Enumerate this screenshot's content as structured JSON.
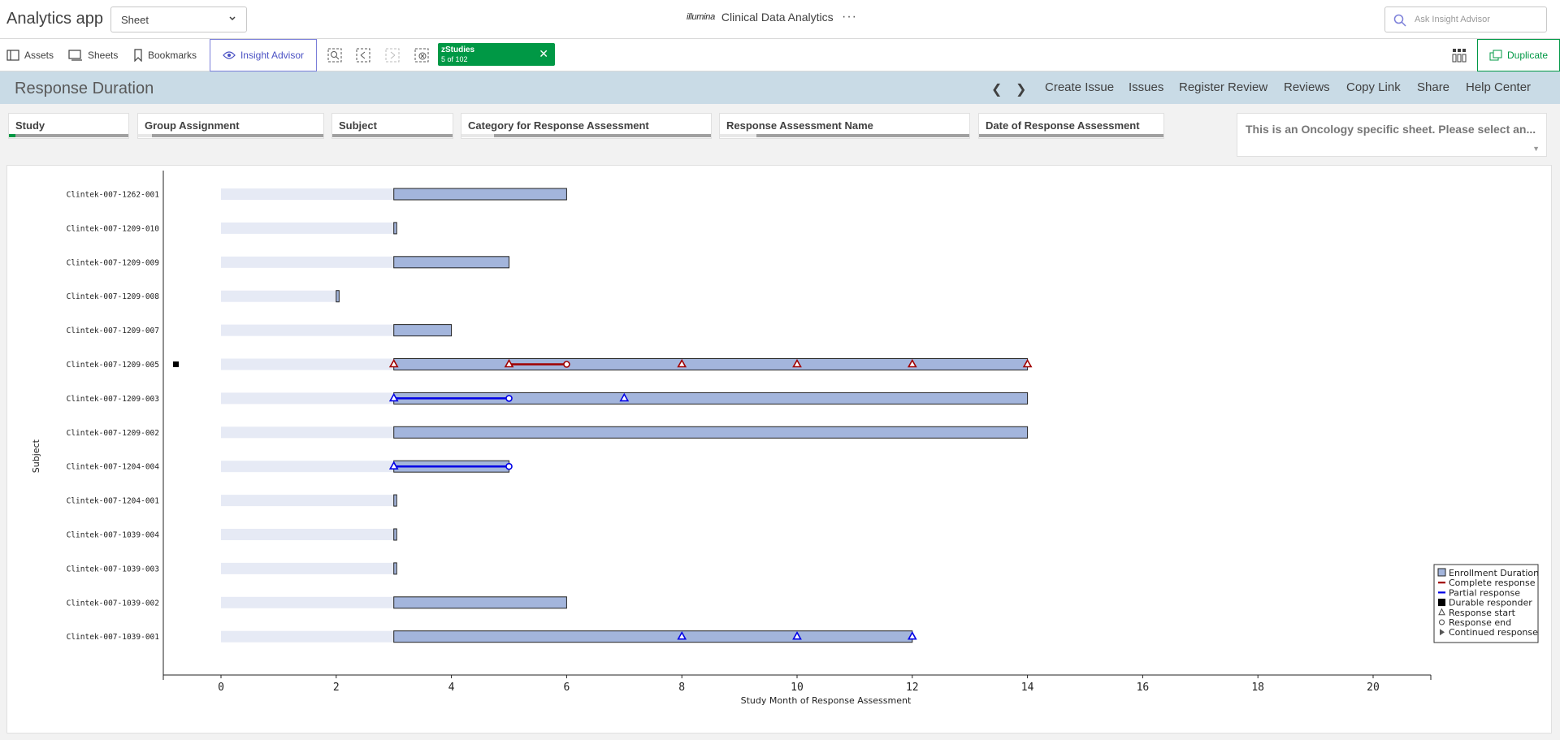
{
  "app": {
    "title": "Analytics app"
  },
  "sheet_select": {
    "value": "Sheet"
  },
  "brand": {
    "logo": "illumina",
    "title": "Clinical Data Analytics",
    "more": "···"
  },
  "ask": {
    "placeholder": "Ask Insight Advisor"
  },
  "toolbar": {
    "assets": "Assets",
    "sheets": "Sheets",
    "bookmarks": "Bookmarks",
    "insight": "Insight Advisor",
    "chip_title": "zStudies",
    "chip_count": "5 of 102",
    "duplicate": "Duplicate"
  },
  "sheet": {
    "title": "Response Duration",
    "links": [
      "Create Issue",
      "Issues",
      "Register Review",
      "Reviews",
      "Copy Link",
      "Share",
      "Help Center"
    ]
  },
  "filters": [
    {
      "label": "Study"
    },
    {
      "label": "Group Assignment"
    },
    {
      "label": "Subject"
    },
    {
      "label": "Category for Response Assessment"
    },
    {
      "label": "Response Assessment Name"
    },
    {
      "label": "Date of Response Assessment"
    }
  ],
  "note": {
    "text": "This is an Oncology specific sheet. Please select an..."
  },
  "colors": {
    "enrollment": "#a3b5dc",
    "prestudy": "#e6eaf5",
    "complete": "#a00000",
    "partial": "#0000e6",
    "green": "#009845"
  },
  "chart_data": {
    "type": "bar",
    "xlabel": "Study Month of Response Assessment",
    "ylabel": "Subject",
    "xlim": [
      -1,
      21
    ],
    "xticks": [
      0,
      2,
      4,
      6,
      8,
      10,
      12,
      14,
      16,
      18,
      20
    ],
    "legend_position": "bottom-right",
    "legend": [
      "Enrollment Duration",
      "Complete response",
      "Partial response",
      "Durable responder",
      "Response start",
      "Response end",
      "Continued response"
    ],
    "subjects": [
      {
        "id": "Clintek-007-1262-001",
        "pre": [
          0,
          3
        ],
        "enroll": [
          3,
          6
        ]
      },
      {
        "id": "Clintek-007-1209-010",
        "pre": [
          0,
          3
        ],
        "enroll": [
          3,
          3.05
        ]
      },
      {
        "id": "Clintek-007-1209-009",
        "pre": [
          0,
          3
        ],
        "enroll": [
          3,
          5
        ]
      },
      {
        "id": "Clintek-007-1209-008",
        "pre": [
          0,
          2
        ],
        "enroll": [
          2,
          2.05
        ]
      },
      {
        "id": "Clintek-007-1209-007",
        "pre": [
          0,
          3
        ],
        "enroll": [
          3,
          4
        ]
      },
      {
        "id": "Clintek-007-1209-005",
        "pre": [
          0,
          3
        ],
        "enroll": [
          3,
          14
        ],
        "durable": true,
        "response": {
          "type": "complete",
          "line": [
            5,
            6
          ],
          "starts": [
            3,
            5,
            8,
            10,
            12,
            14
          ],
          "ends": [
            6
          ]
        }
      },
      {
        "id": "Clintek-007-1209-003",
        "pre": [
          0,
          3
        ],
        "enroll": [
          3,
          14
        ],
        "response": {
          "type": "partial",
          "line": [
            3,
            5
          ],
          "starts": [
            3,
            7
          ],
          "ends": [
            5
          ]
        }
      },
      {
        "id": "Clintek-007-1209-002",
        "pre": [
          0,
          3
        ],
        "enroll": [
          3,
          14
        ]
      },
      {
        "id": "Clintek-007-1204-004",
        "pre": [
          0,
          3
        ],
        "enroll": [
          3,
          5
        ],
        "response": {
          "type": "partial",
          "line": [
            3,
            5
          ],
          "starts": [
            3
          ],
          "ends": [
            5
          ]
        }
      },
      {
        "id": "Clintek-007-1204-001",
        "pre": [
          0,
          3
        ],
        "enroll": [
          3,
          3.05
        ]
      },
      {
        "id": "Clintek-007-1039-004",
        "pre": [
          0,
          3
        ],
        "enroll": [
          3,
          3.05
        ]
      },
      {
        "id": "Clintek-007-1039-003",
        "pre": [
          0,
          3
        ],
        "enroll": [
          3,
          3.05
        ]
      },
      {
        "id": "Clintek-007-1039-002",
        "pre": [
          0,
          3
        ],
        "enroll": [
          3,
          6
        ]
      },
      {
        "id": "Clintek-007-1039-001",
        "pre": [
          0,
          3
        ],
        "enroll": [
          3,
          12
        ],
        "response": {
          "type": "partial",
          "line": null,
          "starts": [
            8,
            10,
            12
          ],
          "ends": []
        }
      }
    ]
  }
}
